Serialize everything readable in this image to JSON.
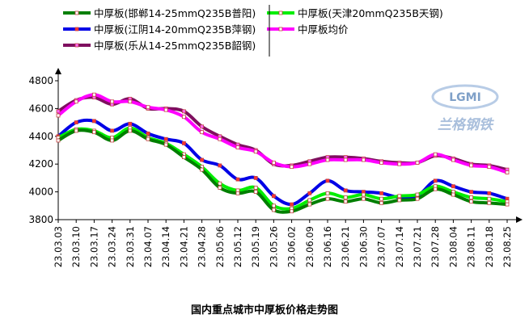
{
  "chart_data": {
    "type": "line",
    "title": "国内重点城市中厚板价格走势图",
    "ylim": [
      3800,
      4800
    ],
    "yticks": [
      3800,
      4000,
      4200,
      4400,
      4600,
      4800
    ],
    "categories": [
      "23.03.03",
      "23.03.10",
      "23.03.17",
      "23.03.24",
      "23.03.31",
      "23.04.07",
      "23.04.14",
      "23.04.21",
      "23.04.28",
      "23.05.06",
      "23.05.12",
      "23.05.19",
      "23.05.26",
      "23.06.02",
      "23.06.09",
      "23.06.16",
      "23.06.21",
      "23.06.30",
      "23.07.07",
      "23.07.14",
      "23.07.21",
      "23.07.28",
      "23.08.04",
      "23.08.11",
      "23.08.18",
      "23.08.25"
    ],
    "legend_placement": "top",
    "grid": false,
    "series": [
      {
        "name": "中厚板(邯郸14-25mmQ235B普阳)",
        "color": "#007f00",
        "marker": "#ffffff",
        "values": [
          4370,
          4440,
          4430,
          4370,
          4440,
          4380,
          4340,
          4250,
          4160,
          4030,
          3990,
          4000,
          3870,
          3860,
          3910,
          3950,
          3930,
          3950,
          3920,
          3940,
          3950,
          4020,
          3980,
          3930,
          3920,
          3910
        ]
      },
      {
        "name": "中厚板(江阴14-20mmQ235B萍钢)",
        "color": "#0000e6",
        "marker": "#ff3333",
        "values": [
          4400,
          4500,
          4510,
          4440,
          4490,
          4420,
          4380,
          4350,
          4230,
          4190,
          4090,
          4100,
          3970,
          3910,
          3990,
          4080,
          4010,
          4000,
          3990,
          3960,
          3970,
          4080,
          4040,
          4000,
          3990,
          3950
        ]
      },
      {
        "name": "中厚板(乐从14-25mmQ235B韶钢)",
        "color": "#7f0f5f",
        "marker": "#ff66ff",
        "values": [
          4580,
          4660,
          4680,
          4630,
          4670,
          4600,
          4600,
          4580,
          4470,
          4400,
          4340,
          4300,
          4200,
          4190,
          4220,
          4250,
          4250,
          4240,
          4220,
          4210,
          4210,
          4260,
          4240,
          4200,
          4190,
          4160
        ]
      },
      {
        "name": "中厚板(天津20mmQ235B天钢)",
        "color": "#00ee00",
        "marker": "#ffffff",
        "values": [
          4390,
          4450,
          4440,
          4390,
          4460,
          4390,
          4350,
          4270,
          4180,
          4060,
          4010,
          4030,
          3900,
          3880,
          3940,
          3990,
          3960,
          3980,
          3950,
          3970,
          3980,
          4040,
          4000,
          3960,
          3950,
          3930
        ]
      },
      {
        "name": "中厚板均价",
        "color": "#ff00ff",
        "marker": "#ffffff",
        "values": [
          4550,
          4650,
          4700,
          4650,
          4650,
          4610,
          4590,
          4540,
          4430,
          4380,
          4320,
          4290,
          4210,
          4180,
          4200,
          4230,
          4230,
          4230,
          4210,
          4200,
          4210,
          4270,
          4230,
          4190,
          4180,
          4140
        ]
      }
    ]
  },
  "watermark": {
    "brand_text": "LGMI",
    "brand_cn": "兰格钢铁"
  }
}
